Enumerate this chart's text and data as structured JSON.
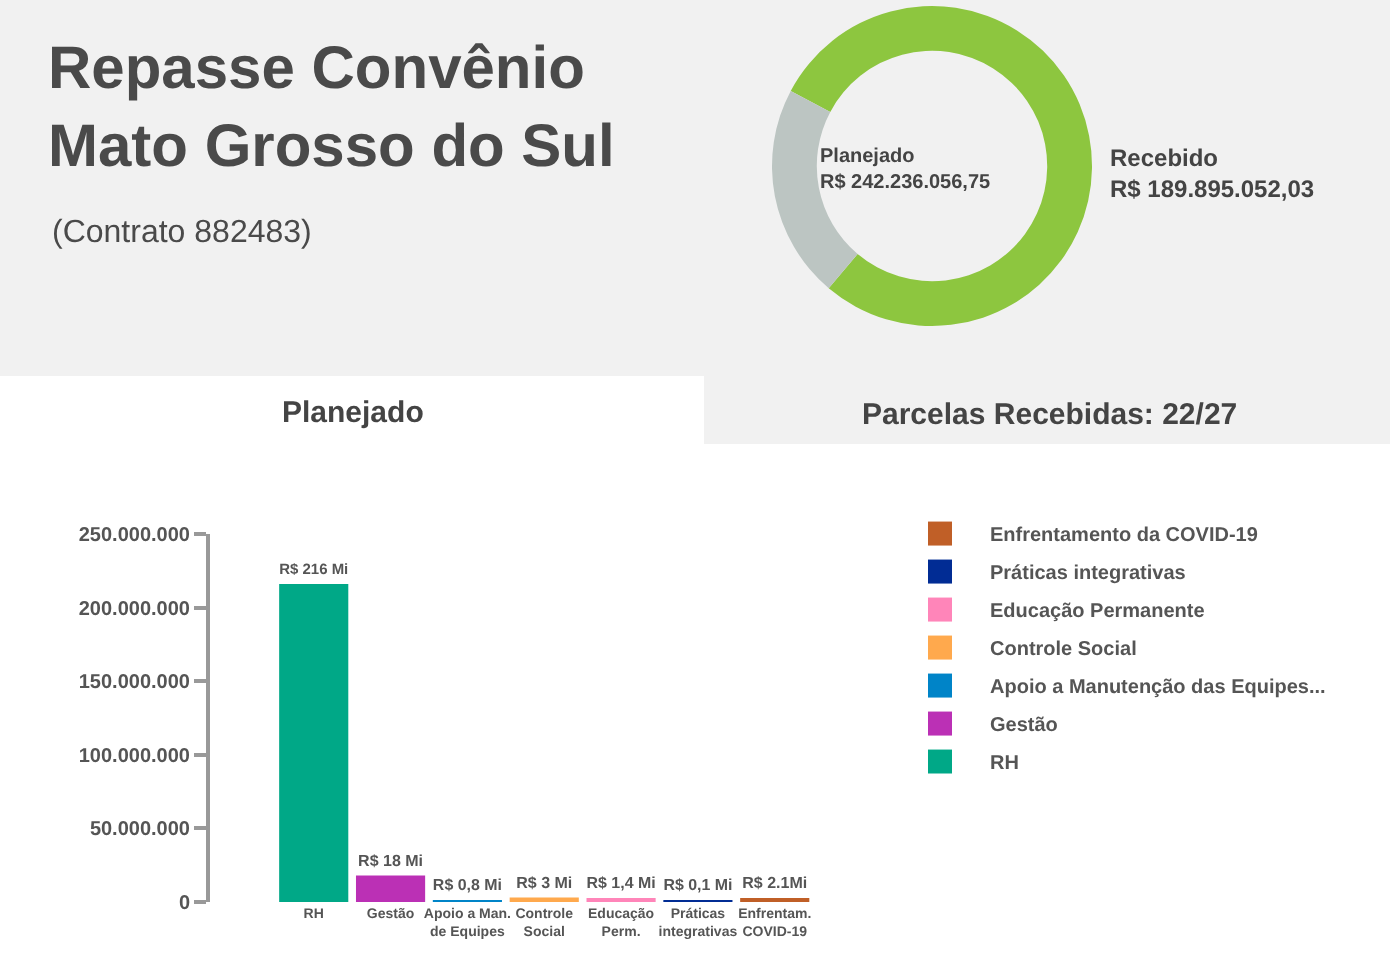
{
  "chart_data": [
    {
      "type": "donut",
      "title": "Repasse Convênio\nMato Grosso do Sul",
      "categories": [
        null,
        null
      ],
      "values": [
        78.39,
        21.61
      ],
      "colors": [
        "#8dc63f",
        "#bcc5c2"
      ],
      "annotations": [
        "Planejado\nR$ 242.236.056,75",
        "Recebido\nR$ 189.895.052,03",
        "Planejado",
        "Parcelas Recebidas: 22/27",
        "(Contrato 882483)"
      ]
    },
    {
      "type": "bar",
      "categories": [
        "RH",
        "Gestão",
        "Apoio a Man.\nde Equipes",
        "Controle\nSocial",
        "Educação\nPerm.",
        "Práticas\nintegrativas",
        "Enfrentam.\nCOVID-19"
      ],
      "series": [
        {
          "name": "RH",
          "color": "#00a887",
          "values": [
            216000000,
            null,
            null,
            null,
            null,
            null,
            null
          ],
          "value_labels": [
            "R$ 216 Mi",
            null,
            null,
            null,
            null,
            null,
            null
          ]
        },
        {
          "name": "Gestão",
          "color": "#bb30b5",
          "values": [
            null,
            18000000,
            null,
            null,
            null,
            null,
            null
          ],
          "value_labels": [
            null,
            "R$ 18 Mi",
            null,
            null,
            null,
            null,
            null
          ]
        },
        {
          "name": "Apoio a Manutenção das Equipes...",
          "color": "#0084c8",
          "values": [
            null,
            null,
            800000,
            null,
            null,
            null,
            null
          ],
          "value_labels": [
            null,
            null,
            "R$ 0,8 Mi",
            null,
            null,
            null,
            null
          ]
        },
        {
          "name": "Controle Social",
          "color": "#ffa94d",
          "values": [
            null,
            null,
            null,
            3000000,
            null,
            null,
            null
          ],
          "value_labels": [
            null,
            null,
            null,
            "R$ 3 Mi",
            null,
            null,
            null
          ]
        },
        {
          "name": "Educação Permanente",
          "color": "#ff85b9",
          "values": [
            null,
            null,
            null,
            null,
            1400000,
            null,
            null
          ],
          "value_labels": [
            null,
            null,
            null,
            null,
            "R$ 1,4 Mi",
            null,
            null
          ]
        },
        {
          "name": "Práticas integrativas",
          "color": "#012c94",
          "values": [
            null,
            null,
            null,
            null,
            null,
            100000,
            null
          ],
          "value_labels": [
            null,
            null,
            null,
            null,
            null,
            "R$ 0,1 Mi",
            null
          ]
        },
        {
          "name": "Enfrentamento da COVID-19",
          "color": "#c05f27",
          "values": [
            null,
            null,
            null,
            null,
            null,
            null,
            2100000
          ],
          "value_labels": [
            null,
            null,
            null,
            null,
            null,
            null,
            "R$ 2.1Mi"
          ]
        }
      ],
      "ylim": [
        0,
        250000000
      ],
      "yticks": [
        {
          "value": 0,
          "label": "0"
        },
        {
          "value": 50000000,
          "label": "50.000.000"
        },
        {
          "value": 100000000,
          "label": "100.000.000"
        },
        {
          "value": 150000000,
          "label": "150.000.000"
        },
        {
          "value": 200000000,
          "label": "200.000.000"
        },
        {
          "value": 250000000,
          "label": "250.000.000"
        }
      ],
      "grid": false,
      "legend": "right"
    }
  ]
}
